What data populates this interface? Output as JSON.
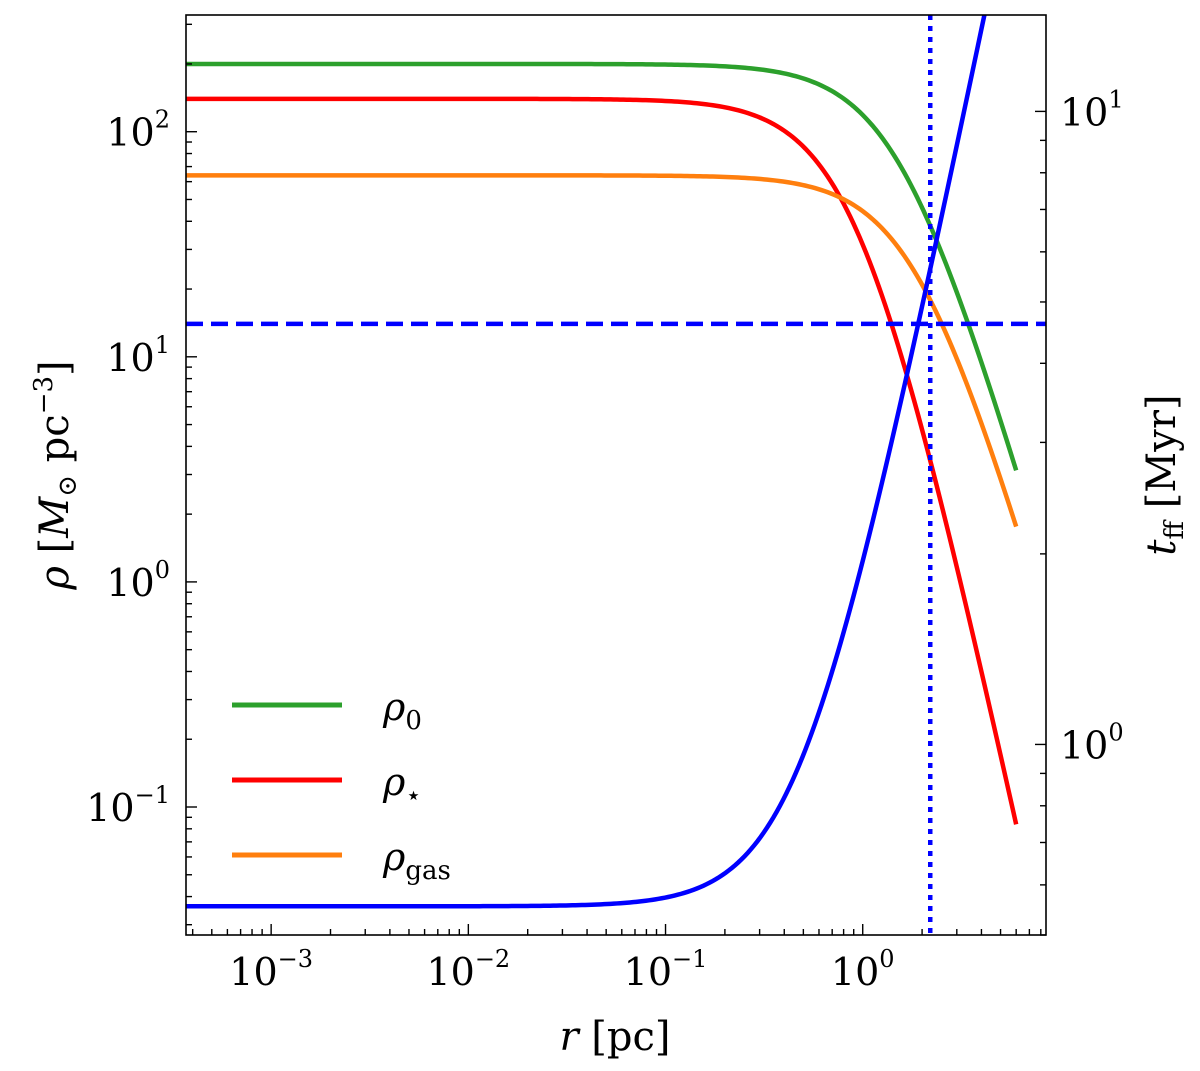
{
  "chart_data": {
    "type": "line",
    "x_axis": {
      "label": "r [pc]",
      "scale": "log",
      "range": [
        0.00037,
        8.5
      ],
      "ticks": [
        {
          "value": 0.001,
          "base": "10",
          "exp": "−3"
        },
        {
          "value": 0.01,
          "base": "10",
          "exp": "−2"
        },
        {
          "value": 0.1,
          "base": "10",
          "exp": "−1"
        },
        {
          "value": 1,
          "base": "10",
          "exp": "0"
        }
      ]
    },
    "y_axis_left": {
      "label": "ρ [M⊙ pc−3]",
      "scale": "log",
      "range": [
        0.027,
        330
      ],
      "ticks": [
        {
          "value": 0.1,
          "base": "10",
          "exp": "−1"
        },
        {
          "value": 1,
          "base": "10",
          "exp": "0"
        },
        {
          "value": 10,
          "base": "10",
          "exp": "1"
        },
        {
          "value": 100,
          "base": "10",
          "exp": "2"
        }
      ]
    },
    "y_axis_right": {
      "label": "tff [Myr]",
      "scale": "log",
      "range": [
        0.5,
        14.2
      ],
      "ticks": [
        {
          "value": 1,
          "base": "10",
          "exp": "0"
        },
        {
          "value": 10,
          "base": "10",
          "exp": "1"
        }
      ]
    },
    "series": [
      {
        "name": "ρ0",
        "axis": "left",
        "color": "#2ca02c",
        "plateau": 200,
        "core_radius": 1.55,
        "outer_slope": -3,
        "x_max": 6.0
      },
      {
        "name": "ρ⋆",
        "axis": "left",
        "color": "#ff0000",
        "plateau": 140,
        "core_radius": 0.95,
        "outer_slope": -4,
        "x_max": 6.0
      },
      {
        "name": "ρgas",
        "axis": "left",
        "color": "#ff7f0e",
        "plateau": 64,
        "core_radius": 1.9,
        "outer_slope": -3,
        "x_max": 6.0
      },
      {
        "name": "tff",
        "axis": "right",
        "color": "#0000ff",
        "plateau": 0.555,
        "core_radius": 0.48,
        "outer_slope": 1.5,
        "x_max": 6.0
      }
    ],
    "reference_lines": [
      {
        "type": "horizontal",
        "axis": "left",
        "value": 14,
        "style": "dashed",
        "color": "#0000ff"
      },
      {
        "type": "vertical",
        "value": 2.2,
        "style": "dotted",
        "color": "#0000ff"
      }
    ],
    "legend": {
      "position": "lower-left",
      "entries": [
        {
          "label_base": "ρ",
          "label_sub": "0",
          "color": "#2ca02c"
        },
        {
          "label_base": "ρ",
          "label_sub": "⋆",
          "color": "#ff0000"
        },
        {
          "label_base": "ρ",
          "label_sub": "gas",
          "color": "#ff7f0e"
        }
      ]
    },
    "grid": false
  }
}
